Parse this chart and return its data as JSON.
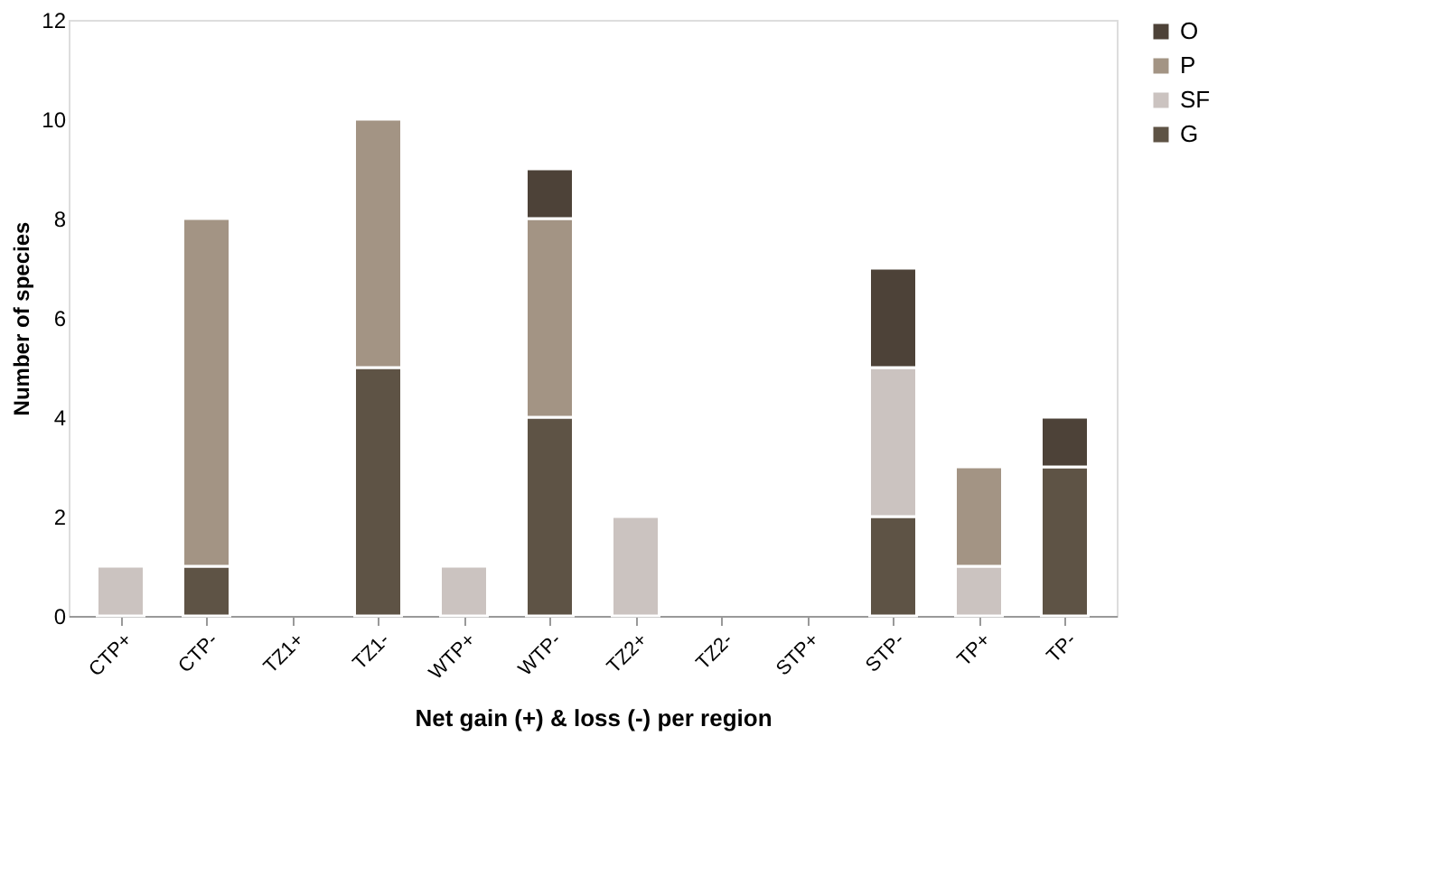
{
  "chart_data": {
    "type": "bar",
    "stacked": true,
    "xlabel": "Net gain (+) & loss (-) per region",
    "ylabel": "Number of species",
    "categories": [
      "CTP+",
      "CTP-",
      "TZ1+",
      "TZ1-",
      "WTP+",
      "WTP-",
      "TZ2+",
      "TZ2-",
      "STP+",
      "STP-",
      "TP+",
      "TP-"
    ],
    "series": [
      {
        "name": "G",
        "color": "#5e5345",
        "values": [
          null,
          1,
          null,
          5,
          null,
          4,
          null,
          null,
          null,
          2,
          null,
          3
        ]
      },
      {
        "name": "SF",
        "color": "#cbc3c0",
        "values": [
          1,
          null,
          null,
          null,
          1,
          null,
          2,
          null,
          null,
          3,
          1,
          null
        ]
      },
      {
        "name": "P",
        "color": "#a39484",
        "values": [
          null,
          7,
          null,
          5,
          null,
          4,
          null,
          null,
          null,
          null,
          2,
          null
        ]
      },
      {
        "name": "O",
        "color": "#4d4238",
        "values": [
          null,
          null,
          null,
          null,
          null,
          1,
          null,
          null,
          null,
          2,
          null,
          1
        ]
      }
    ],
    "ylim": [
      0,
      12
    ],
    "yticks": [
      0,
      2,
      4,
      6,
      8,
      10,
      12
    ],
    "grid": false,
    "legend": "right"
  }
}
